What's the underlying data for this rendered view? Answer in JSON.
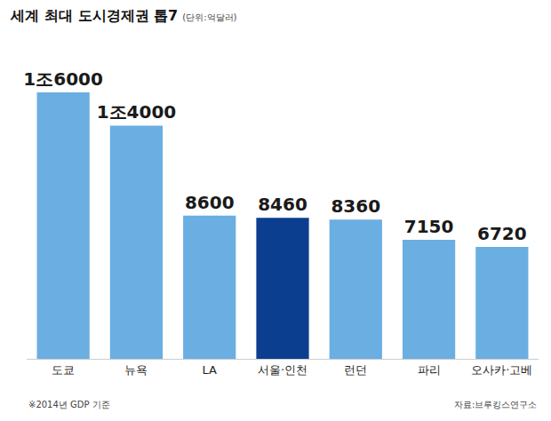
{
  "chart_data": {
    "type": "bar",
    "title": "세계 최대 도시경제권 톱7",
    "subtitle": "(단위:억달러)",
    "categories": [
      "도쿄",
      "뉴욕",
      "LA",
      "서울·인천",
      "런던",
      "파리",
      "오사카·고베"
    ],
    "values": [
      16000,
      14000,
      8600,
      8460,
      8360,
      7150,
      6720
    ],
    "value_labels": [
      "1조6000",
      "1조4000",
      "8600",
      "8460",
      "8360",
      "7150",
      "6720"
    ],
    "colors": [
      "#6aaee2",
      "#6aaee2",
      "#6aaee2",
      "#0b3e8f",
      "#6aaee2",
      "#6aaee2",
      "#6aaee2"
    ],
    "data_labels": true,
    "tick_labels": "x",
    "grid": false,
    "ylim": [
      0,
      17700
    ],
    "note": "※2014년 GDP 기준",
    "source": "자료:브루킹스연구소"
  }
}
